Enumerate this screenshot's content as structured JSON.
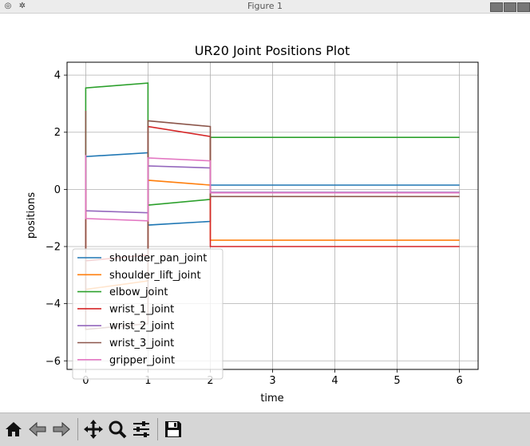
{
  "window": {
    "title": "Figure 1"
  },
  "toolbar": {
    "tools": [
      {
        "name": "home-icon"
      },
      {
        "name": "back-icon"
      },
      {
        "name": "forward-icon"
      },
      {
        "name": "pan-icon"
      },
      {
        "name": "zoom-icon"
      },
      {
        "name": "configure-subplots-icon"
      },
      {
        "name": "save-icon"
      }
    ]
  },
  "chart_data": {
    "type": "line",
    "title": "UR20 Joint Positions Plot",
    "xlabel": "time",
    "ylabel": "positions",
    "xlim": [
      -0.3,
      6.3
    ],
    "ylim": [
      -6.3,
      4.45
    ],
    "xticks": [
      0,
      1,
      2,
      3,
      4,
      5,
      6
    ],
    "yticks": [
      -6,
      -4,
      -2,
      0,
      2,
      4
    ],
    "ytick_labels": [
      "−6",
      "−4",
      "−2",
      "0",
      "2",
      "4"
    ],
    "grid": true,
    "legend_position": "lower left",
    "series": [
      {
        "name": "shoulder_pan_joint",
        "color": "#1f77b4",
        "x": [
          0,
          0,
          1,
          1,
          2,
          2,
          6
        ],
        "y": [
          0,
          1.15,
          1.28,
          -1.25,
          -1.12,
          0.15,
          0.15
        ]
      },
      {
        "name": "shoulder_lift_joint",
        "color": "#ff7f0e",
        "x": [
          0,
          0,
          1,
          1,
          2,
          2,
          6
        ],
        "y": [
          0,
          -3.5,
          -3.2,
          0.32,
          0.15,
          -1.78,
          -1.78
        ]
      },
      {
        "name": "elbow_joint",
        "color": "#2ca02c",
        "x": [
          0,
          0,
          1,
          1,
          2,
          2,
          6
        ],
        "y": [
          0,
          3.55,
          3.72,
          -0.55,
          -0.35,
          1.82,
          1.82
        ]
      },
      {
        "name": "wrist_1_joint",
        "color": "#d62728",
        "x": [
          0,
          0,
          1,
          1,
          2,
          2,
          6
        ],
        "y": [
          0,
          -2.5,
          -2.3,
          2.2,
          1.85,
          -2.0,
          -2.0
        ]
      },
      {
        "name": "wrist_2_joint",
        "color": "#9467bd",
        "x": [
          0,
          0,
          1,
          1,
          2,
          2,
          6
        ],
        "y": [
          0,
          -0.75,
          -0.82,
          0.82,
          0.75,
          -0.1,
          -0.1
        ]
      },
      {
        "name": "wrist_3_joint",
        "color": "#8c564b",
        "x": [
          0,
          0,
          1,
          1,
          2,
          2,
          6
        ],
        "y": [
          2.75,
          -4.9,
          -4.7,
          2.4,
          2.2,
          -0.25,
          -0.25
        ]
      },
      {
        "name": "gripper_joint",
        "color": "#e377c2",
        "x": [
          0,
          0,
          1,
          1,
          2,
          2,
          6
        ],
        "y": [
          1.2,
          -1.02,
          -1.1,
          1.1,
          1.0,
          -0.12,
          -0.12
        ]
      }
    ]
  }
}
